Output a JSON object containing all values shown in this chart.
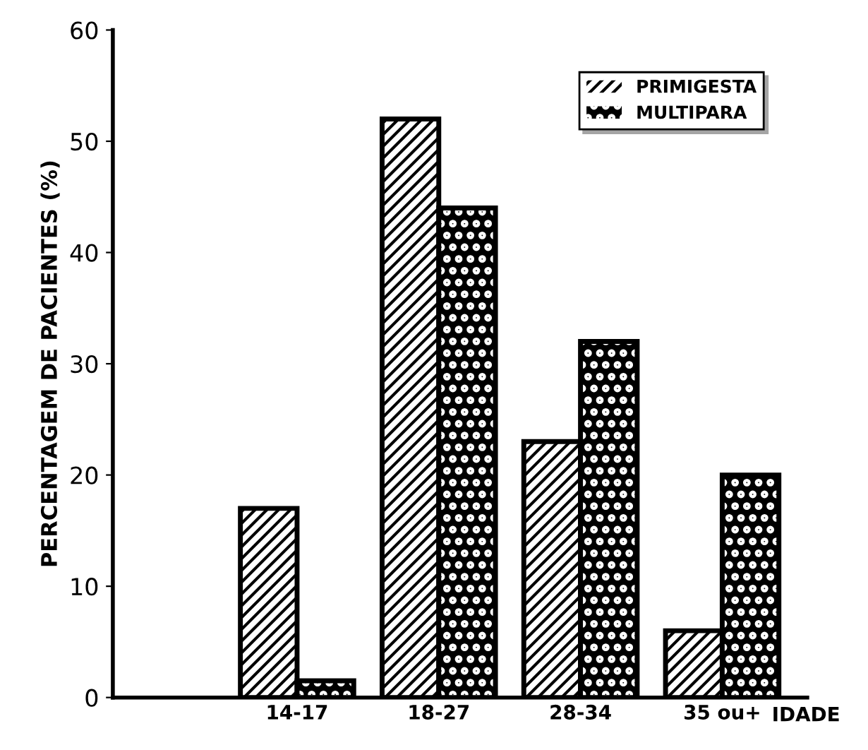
{
  "chart_data": {
    "type": "bar",
    "xlabel": "IDADE",
    "ylabel": "PERCENTAGEM DE PACIENTES (%)",
    "categories": [
      "14-17",
      "18-27",
      "28-34",
      "35 ou+"
    ],
    "series": [
      {
        "name": "PRIMIGESTA",
        "color": "#ffffff",
        "values": [
          17,
          52,
          23,
          6
        ]
      },
      {
        "name": "MULTIPARA",
        "color": "#000000",
        "values": [
          1.5,
          44,
          32,
          20
        ]
      }
    ],
    "ylim": [
      0,
      60
    ],
    "yticks": [
      0,
      10,
      20,
      30,
      40,
      50,
      60
    ],
    "grid": false,
    "legend": "top right"
  }
}
